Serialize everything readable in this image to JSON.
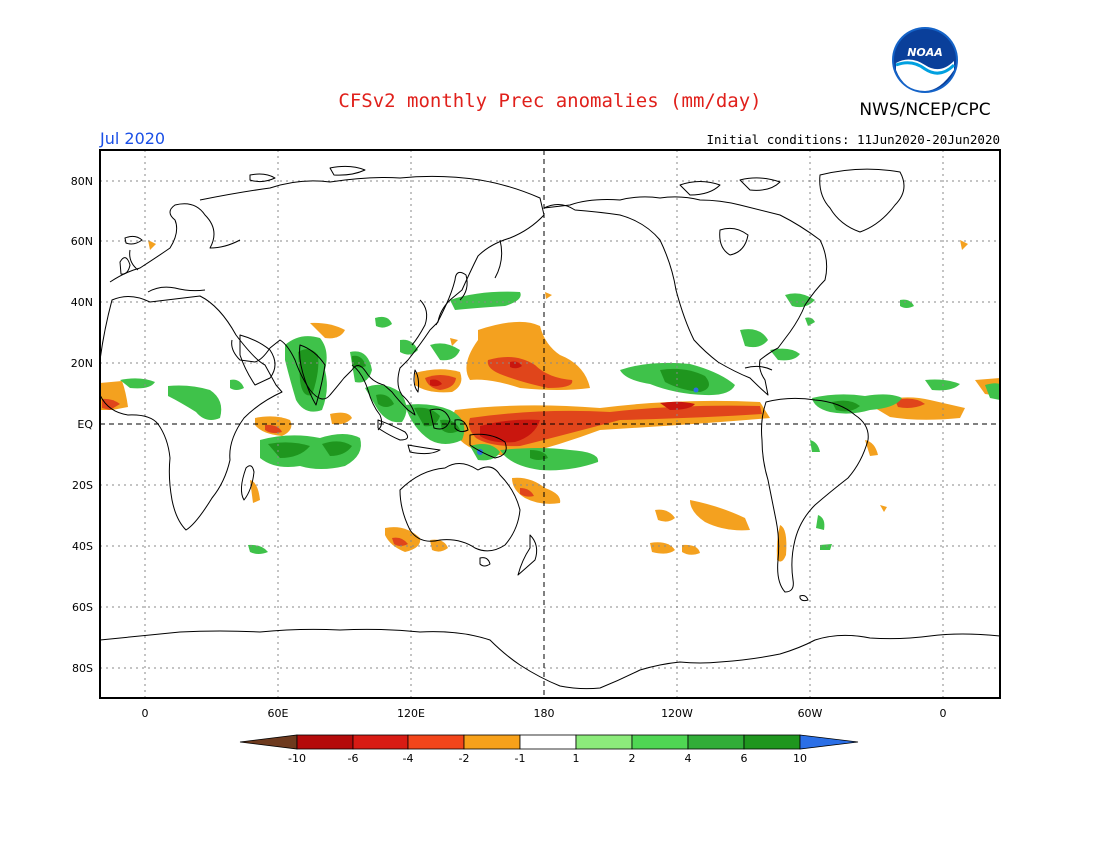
{
  "header": {
    "title": "CFSv2 monthly Prec anomalies (mm/day)",
    "agency": "NWS/NCEP/CPC",
    "month": "Jul 2020",
    "initial_conditions": "Initial conditions: 11Jun2020-20Jun2020",
    "logo_text": "NOAA"
  },
  "map": {
    "lon_labels": [
      "0",
      "60E",
      "120E",
      "180",
      "120W",
      "60W",
      "0"
    ],
    "lat_labels": [
      "80N",
      "60N",
      "40N",
      "20N",
      "EQ",
      "20S",
      "40S",
      "60S",
      "80S"
    ]
  },
  "legend": {
    "tick_labels": [
      "-10",
      "-6",
      "-4",
      "-2",
      "-1",
      "1",
      "2",
      "4",
      "6",
      "10"
    ],
    "colors": {
      "below_min": "#6e3a1e",
      "bins": [
        "#b40a0a",
        "#d81b14",
        "#f2451a",
        "#f7a11a",
        "#ffffff",
        "#8ceb7b",
        "#4fd653",
        "#31ad38",
        "#1f961e"
      ],
      "above_max": "#2b6fe6"
    }
  },
  "anomalies": {
    "wet_color": "#3fc24a",
    "dry_color": "#f4a11f",
    "very_dry_color": "#e0451b",
    "extreme_dry_color": "#c9160e",
    "extreme_wet_color": "#2b6fe6"
  }
}
